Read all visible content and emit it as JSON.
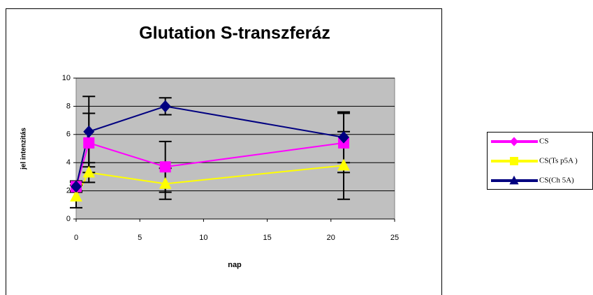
{
  "chart_data": {
    "type": "line",
    "title": "Glutation S-transzferáz",
    "x_label": "nap",
    "y_label": "jel intenzitás",
    "xlim": [
      0,
      25
    ],
    "xticks": [
      0,
      5,
      10,
      15,
      20,
      25
    ],
    "ylim": [
      0,
      10
    ],
    "yticks": [
      0,
      2,
      4,
      6,
      8,
      10
    ],
    "grid": true,
    "legend": "right",
    "series": [
      {
        "name": "CS",
        "color": "#ff00ff",
        "marker": "square",
        "x": [
          0,
          1,
          7,
          21
        ],
        "values": [
          2.3,
          5.4,
          3.7,
          5.4
        ],
        "errors": [
          0.4,
          2.1,
          1.8,
          2.1
        ]
      },
      {
        "name": "CS(Ts p5A )",
        "color": "#ffff00",
        "marker": "triangle",
        "x": [
          0,
          1,
          7,
          21
        ],
        "values": [
          1.6,
          3.3,
          2.5,
          3.8
        ],
        "errors": [
          0.8,
          0.7,
          1.1,
          2.4
        ]
      },
      {
        "name": "CS(Ch 5A)",
        "color": "#000080",
        "marker": "diamond",
        "x": [
          0,
          1,
          7,
          21
        ],
        "values": [
          2.3,
          6.2,
          8.0,
          5.8
        ],
        "errors": [
          0.3,
          2.5,
          0.6,
          1.8
        ]
      }
    ]
  }
}
